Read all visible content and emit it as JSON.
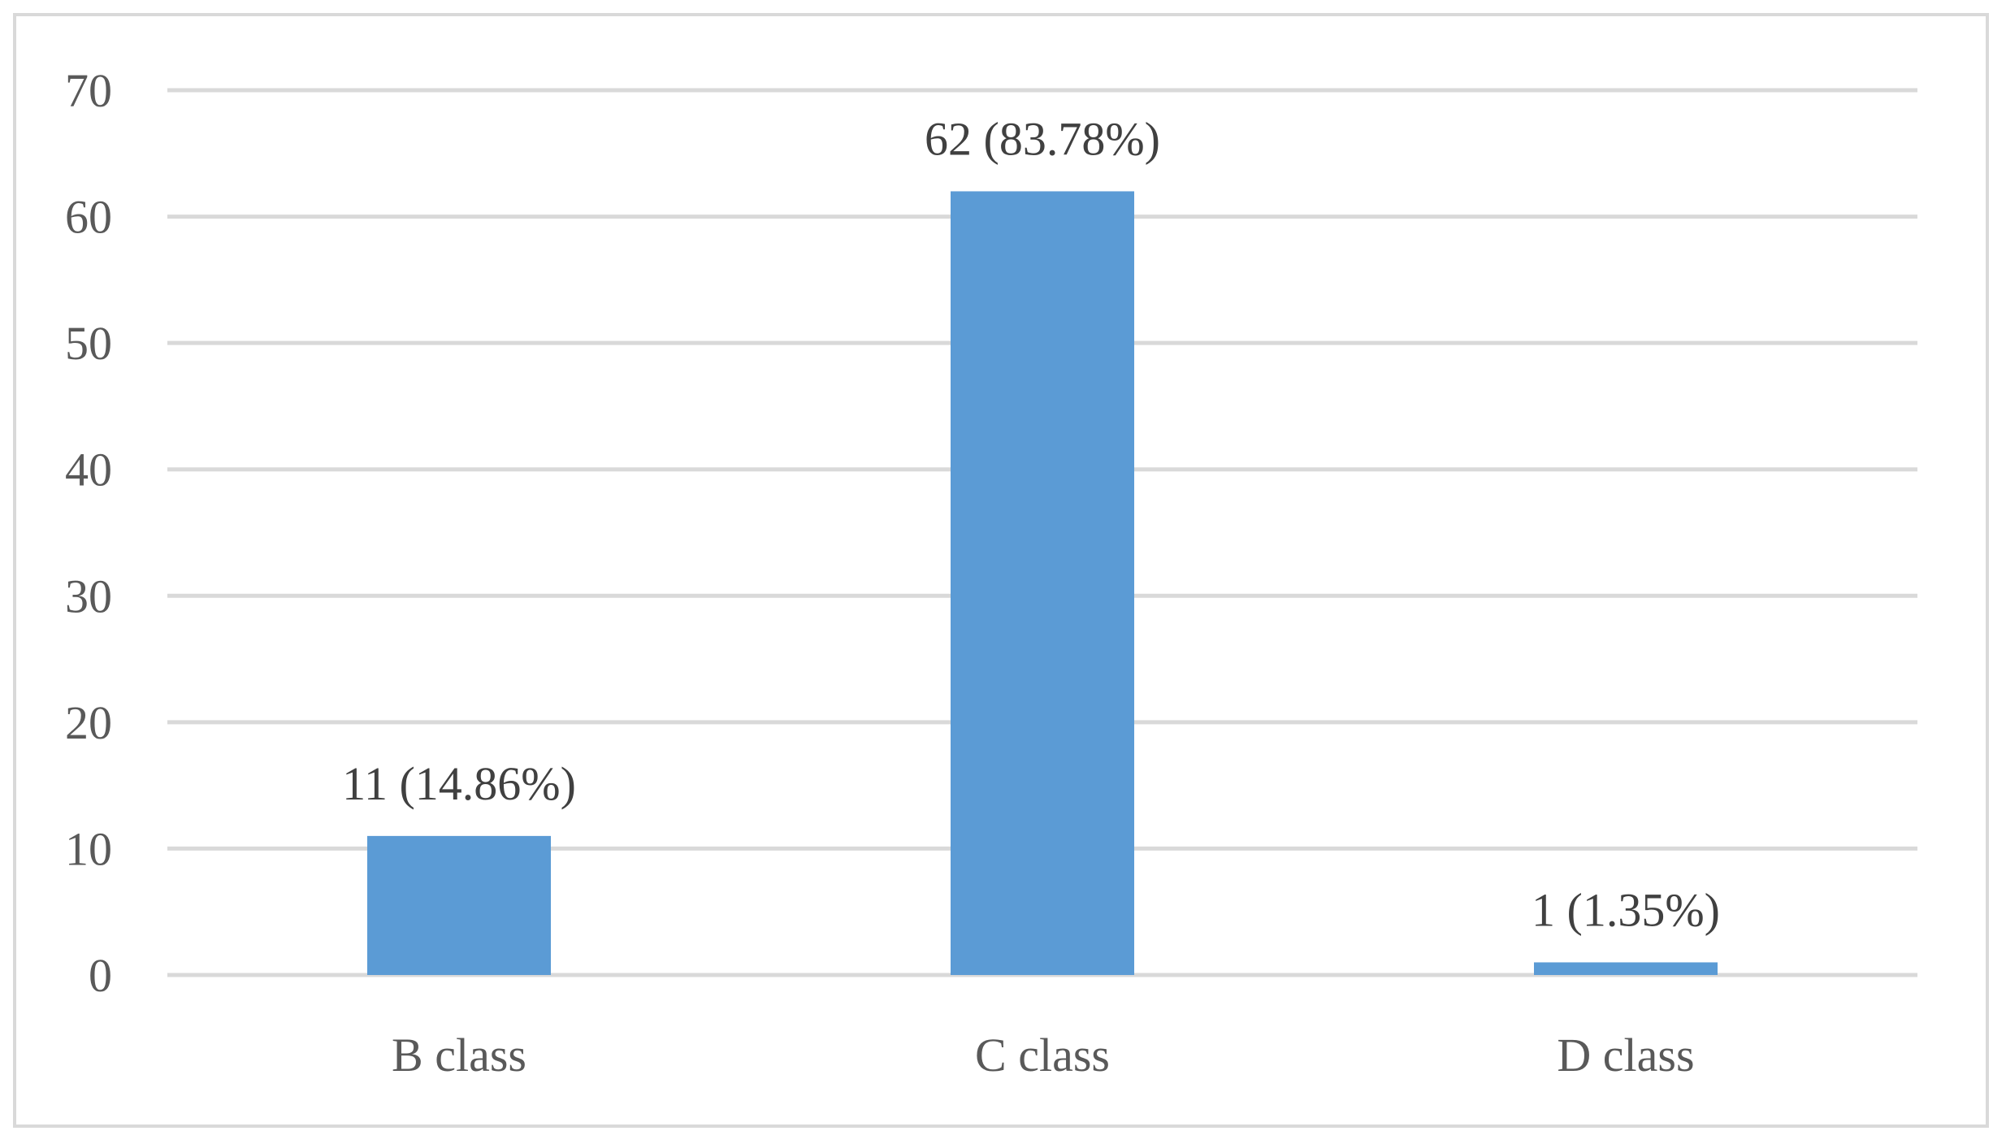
{
  "chart_data": {
    "type": "bar",
    "title": "",
    "xlabel": "",
    "ylabel": "",
    "categories": [
      "B class",
      "C class",
      "D class"
    ],
    "values": [
      11,
      62,
      1
    ],
    "data_labels": [
      "11 (14.86%)",
      "62 (83.78%)",
      "1 (1.35%)"
    ],
    "ylim": [
      0,
      70
    ],
    "yticks": [
      0,
      10,
      20,
      30,
      40,
      50,
      60,
      70
    ],
    "grid": true,
    "legend": "none",
    "bar_color": "#5b9bd5",
    "grid_color": "#d9d9d9",
    "label_color": "#595959"
  }
}
